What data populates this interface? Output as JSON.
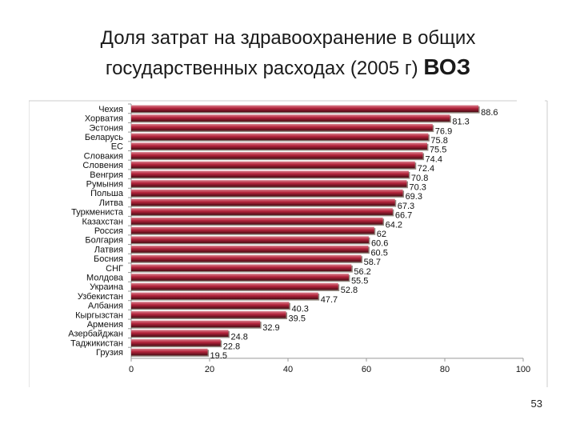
{
  "slide": {
    "title_line1": "Доля затрат на здравоохранение в общих",
    "title_line2": "государственных расходах (2005 г)",
    "title_suffix": "ВОЗ",
    "page_number": "53"
  },
  "colors": {
    "bar": "#b3233b",
    "bar_highlight": "#d9828e",
    "bar_dark": "#4a0d15",
    "bar_alt_base": "#8a7d3a",
    "axis": "#999999",
    "text": "#111111"
  },
  "chart_data": {
    "type": "bar",
    "orientation": "horizontal",
    "title": "",
    "xlabel": "",
    "ylabel": "",
    "xlim": [
      0,
      100
    ],
    "x_ticks": [
      0,
      20,
      40,
      60,
      80,
      100
    ],
    "grid": false,
    "categories": [
      "Чехия",
      "Хорватия",
      "Эстония",
      "Беларусь",
      "ЕС",
      "Словакия",
      "Словения",
      "Венгрия",
      "Румыния",
      "Польша",
      "Литва",
      "Туркмениста",
      "Казахстан",
      "Россия",
      "Болгария",
      "Латвия",
      "Босния",
      "СНГ",
      "Молдова",
      "Украина",
      "Узбекистан",
      "Албания",
      "Кыргызстан",
      "Армения",
      "Азербайджан",
      "Таджикистан",
      "Грузия"
    ],
    "values": [
      88.6,
      81.3,
      76.9,
      75.8,
      75.5,
      74.4,
      72.4,
      70.8,
      70.3,
      69.3,
      67.3,
      66.7,
      64.2,
      62,
      60.6,
      60.5,
      58.7,
      56.2,
      55.5,
      52.8,
      47.7,
      40.3,
      39.5,
      32.9,
      24.8,
      22.8,
      19.5
    ],
    "value_labels": [
      "88.6",
      "81.3",
      "76.9",
      "75.8",
      "75.5",
      "74.4",
      "72.4",
      "70.8",
      "70.3",
      "69.3",
      "67.3",
      "66.7",
      "64.2",
      "62",
      "60.6",
      "60.5",
      "58.7",
      "56.2",
      "55.5",
      "52.8",
      "47.7",
      "40.3",
      "39.5",
      "32.9",
      "24.8",
      "22.8",
      "19.5"
    ]
  }
}
